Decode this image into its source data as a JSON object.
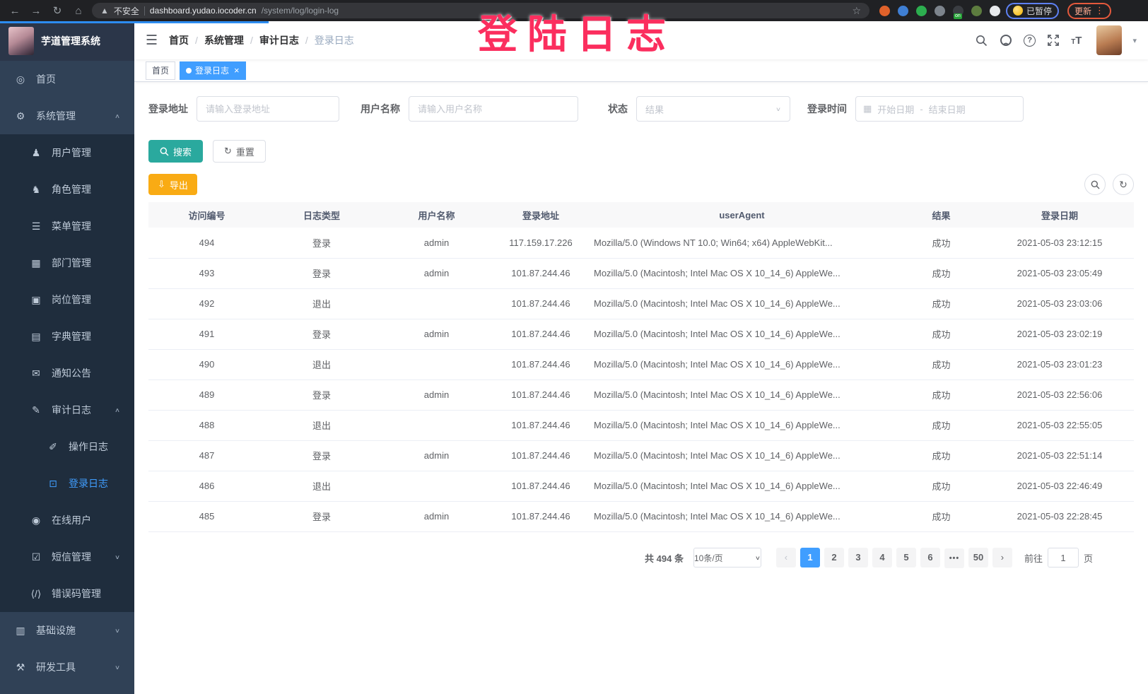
{
  "browser": {
    "security_label": "不安全",
    "url_host": "dashboard.yudao.iocoder.cn",
    "url_path": "/system/log/login-log",
    "extensions": [
      {
        "key": "orange-extension",
        "color": "#e0622b"
      },
      {
        "key": "blue-gem-extension",
        "color": "#3f7fd4"
      },
      {
        "key": "green-sync-extension",
        "color": "#2cae4f"
      },
      {
        "key": "grid-extension",
        "color": "#7d848d"
      },
      {
        "key": "list-extension",
        "color": "#3a3d42",
        "badge": "on"
      },
      {
        "key": "leaf-extension",
        "color": "#5d7c3f"
      },
      {
        "key": "puzzle-extension",
        "color": "#e8eaed"
      }
    ],
    "paused_badge": "已暂停",
    "update_button": "更新"
  },
  "annotation": {
    "text": "登陆日志",
    "color": "#fb2e5e"
  },
  "sidebar": {
    "title": "芋道管理系统",
    "items": [
      {
        "key": "home",
        "label": "首页",
        "icon": "dashboard-icon",
        "level": 1
      },
      {
        "key": "system",
        "label": "系统管理",
        "icon": "gear-icon",
        "level": 1,
        "chevron": "up"
      },
      {
        "key": "user",
        "label": "用户管理",
        "icon": "user-icon",
        "level": 2
      },
      {
        "key": "role",
        "label": "角色管理",
        "icon": "role-icon",
        "level": 2
      },
      {
        "key": "menu",
        "label": "菜单管理",
        "icon": "menu-icon",
        "level": 2
      },
      {
        "key": "dept",
        "label": "部门管理",
        "icon": "dept-icon",
        "level": 2
      },
      {
        "key": "post",
        "label": "岗位管理",
        "icon": "post-icon",
        "level": 2
      },
      {
        "key": "dict",
        "label": "字典管理",
        "icon": "dict-icon",
        "level": 2
      },
      {
        "key": "notice",
        "label": "通知公告",
        "icon": "notice-icon",
        "level": 2
      },
      {
        "key": "audit-log",
        "label": "审计日志",
        "icon": "audit-log-icon",
        "level": 2,
        "chevron": "up"
      },
      {
        "key": "operate-log",
        "label": "操作日志",
        "icon": "operate-log-icon",
        "level": 3
      },
      {
        "key": "login-log",
        "label": "登录日志",
        "icon": "login-log-icon",
        "level": 3,
        "active": true
      },
      {
        "key": "online-user",
        "label": "在线用户",
        "icon": "online-user-icon",
        "level": 2
      },
      {
        "key": "sms",
        "label": "短信管理",
        "icon": "sms-icon",
        "level": 2,
        "chevron": "down"
      },
      {
        "key": "error-code",
        "label": "错误码管理",
        "icon": "error-code-icon",
        "level": 2
      },
      {
        "key": "infra",
        "label": "基础设施",
        "icon": "infra-icon",
        "level": 1,
        "chevron": "down"
      },
      {
        "key": "devtool",
        "label": "研发工具",
        "icon": "devtool-icon",
        "level": 1,
        "chevron": "down"
      }
    ]
  },
  "breadcrumb": [
    {
      "key": "home",
      "label": "首页"
    },
    {
      "key": "system",
      "label": "系统管理"
    },
    {
      "key": "audit-log",
      "label": "审计日志"
    },
    {
      "key": "login-log",
      "label": "登录日志",
      "current": true
    }
  ],
  "tags": [
    {
      "key": "home",
      "label": "首页",
      "active": false
    },
    {
      "key": "login-log",
      "label": "登录日志",
      "active": true,
      "closable": true
    }
  ],
  "filters": {
    "login_address_label": "登录地址",
    "login_address_placeholder": "请输入登录地址",
    "username_label": "用户名称",
    "username_placeholder": "请输入用户名称",
    "status_label": "状态",
    "status_placeholder": "结果",
    "login_time_label": "登录时间",
    "date_start_placeholder": "开始日期",
    "date_separator": "-",
    "date_end_placeholder": "结束日期",
    "search_label": "搜索",
    "reset_label": "重置"
  },
  "toolbar": {
    "export_label": "导出"
  },
  "table": {
    "columns": [
      "访问编号",
      "日志类型",
      "用户名称",
      "登录地址",
      "userAgent",
      "结果",
      "登录日期"
    ],
    "rows": [
      [
        "494",
        "登录",
        "admin",
        "117.159.17.226",
        "Mozilla/5.0 (Windows NT 10.0; Win64; x64) AppleWebKit...",
        "成功",
        "2021-05-03 23:12:15"
      ],
      [
        "493",
        "登录",
        "admin",
        "101.87.244.46",
        "Mozilla/5.0 (Macintosh; Intel Mac OS X 10_14_6) AppleWe...",
        "成功",
        "2021-05-03 23:05:49"
      ],
      [
        "492",
        "退出",
        "",
        "101.87.244.46",
        "Mozilla/5.0 (Macintosh; Intel Mac OS X 10_14_6) AppleWe...",
        "成功",
        "2021-05-03 23:03:06"
      ],
      [
        "491",
        "登录",
        "admin",
        "101.87.244.46",
        "Mozilla/5.0 (Macintosh; Intel Mac OS X 10_14_6) AppleWe...",
        "成功",
        "2021-05-03 23:02:19"
      ],
      [
        "490",
        "退出",
        "",
        "101.87.244.46",
        "Mozilla/5.0 (Macintosh; Intel Mac OS X 10_14_6) AppleWe...",
        "成功",
        "2021-05-03 23:01:23"
      ],
      [
        "489",
        "登录",
        "admin",
        "101.87.244.46",
        "Mozilla/5.0 (Macintosh; Intel Mac OS X 10_14_6) AppleWe...",
        "成功",
        "2021-05-03 22:56:06"
      ],
      [
        "488",
        "退出",
        "",
        "101.87.244.46",
        "Mozilla/5.0 (Macintosh; Intel Mac OS X 10_14_6) AppleWe...",
        "成功",
        "2021-05-03 22:55:05"
      ],
      [
        "487",
        "登录",
        "admin",
        "101.87.244.46",
        "Mozilla/5.0 (Macintosh; Intel Mac OS X 10_14_6) AppleWe...",
        "成功",
        "2021-05-03 22:51:14"
      ],
      [
        "486",
        "退出",
        "",
        "101.87.244.46",
        "Mozilla/5.0 (Macintosh; Intel Mac OS X 10_14_6) AppleWe...",
        "成功",
        "2021-05-03 22:46:49"
      ],
      [
        "485",
        "登录",
        "admin",
        "101.87.244.46",
        "Mozilla/5.0 (Macintosh; Intel Mac OS X 10_14_6) AppleWe...",
        "成功",
        "2021-05-03 22:28:45"
      ]
    ]
  },
  "pagination": {
    "total_text": "共 494 条",
    "page_size": "10条/页",
    "prev_icon": "‹",
    "next_icon": "›",
    "pages": [
      "1",
      "2",
      "3",
      "4",
      "5",
      "6",
      "•••",
      "50"
    ],
    "active_page": "1",
    "goto_label": "前往",
    "goto_value": "1",
    "goto_suffix": "页"
  },
  "colors": {
    "primary": "#409eff",
    "search_teal": "#2aa99e",
    "export_amber": "#f9ab14",
    "sidebar": "#304156",
    "submenu": "#1f2d3d",
    "annotation_pink": "#fb2e5e"
  }
}
